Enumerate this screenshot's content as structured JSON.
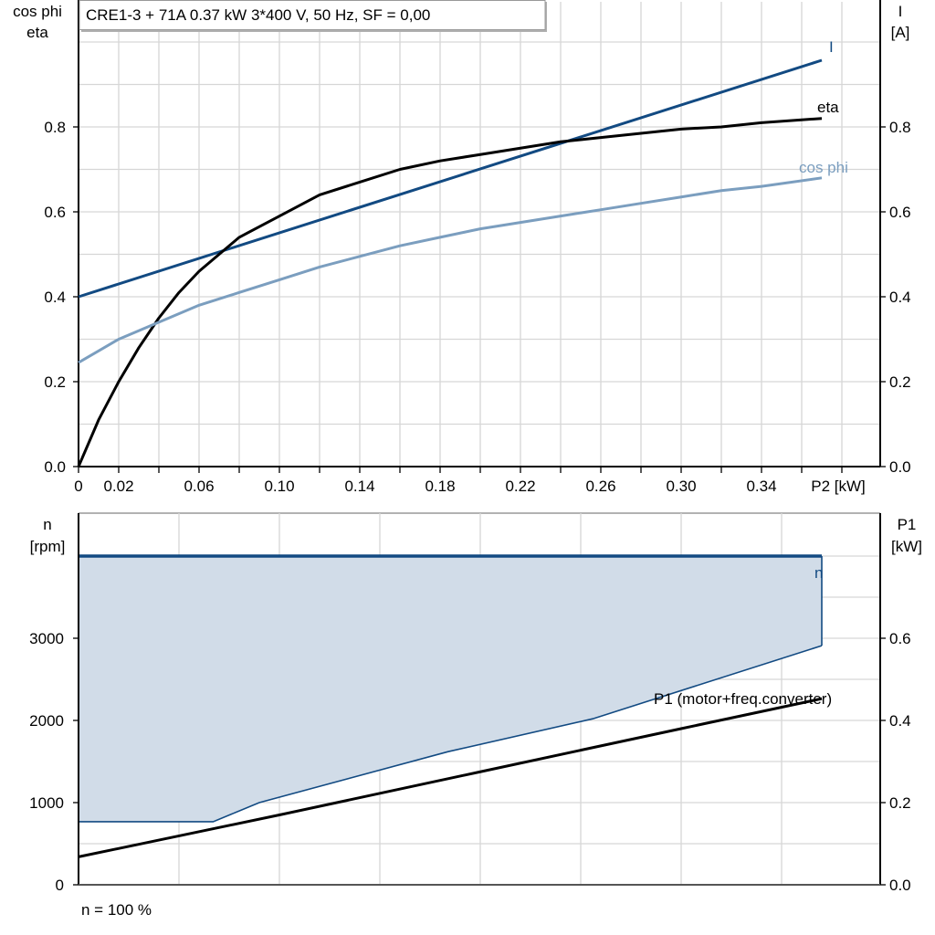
{
  "chart_data": [
    {
      "type": "line",
      "title": "CRE1-3 + 71A   0.37 kW   3*400 V, 50 Hz, SF = 0,00",
      "xlabel": "P2 [kW]",
      "ylabel_left": [
        "cos phi",
        "eta"
      ],
      "ylabel_right": [
        "I",
        "[A]"
      ],
      "xlim": [
        0,
        0.4
      ],
      "ylim": [
        0,
        1.1
      ],
      "grid": true,
      "x_tick_labels": [
        "0",
        "0.02",
        "0.06",
        "0.10",
        "0.14",
        "0.18",
        "0.22",
        "0.26",
        "0.30",
        "0.34"
      ],
      "y_tick_labels_left": [
        "0.0",
        "0.2",
        "0.4",
        "0.6",
        "0.8"
      ],
      "y_tick_labels_right": [
        "0.0",
        "0.2",
        "0.4",
        "0.6",
        "0.8"
      ],
      "series": [
        {
          "name": "I",
          "color": "#124a82",
          "x": [
            0,
            0.37
          ],
          "y": [
            0.4,
            0.957
          ]
        },
        {
          "name": "eta",
          "color": "#000000",
          "x": [
            0,
            0.01,
            0.02,
            0.03,
            0.04,
            0.05,
            0.06,
            0.07,
            0.08,
            0.1,
            0.12,
            0.14,
            0.16,
            0.18,
            0.2,
            0.22,
            0.24,
            0.26,
            0.28,
            0.3,
            0.32,
            0.34,
            0.37
          ],
          "y": [
            0,
            0.11,
            0.2,
            0.28,
            0.35,
            0.41,
            0.46,
            0.5,
            0.54,
            0.59,
            0.64,
            0.67,
            0.7,
            0.72,
            0.735,
            0.75,
            0.765,
            0.775,
            0.785,
            0.795,
            0.8,
            0.81,
            0.82
          ]
        },
        {
          "name": "cos phi",
          "color": "#7b9ebf",
          "x": [
            0,
            0.02,
            0.04,
            0.06,
            0.08,
            0.1,
            0.12,
            0.14,
            0.16,
            0.18,
            0.2,
            0.22,
            0.24,
            0.26,
            0.28,
            0.3,
            0.32,
            0.34,
            0.37
          ],
          "y": [
            0.245,
            0.3,
            0.34,
            0.38,
            0.41,
            0.44,
            0.47,
            0.495,
            0.52,
            0.54,
            0.56,
            0.575,
            0.59,
            0.605,
            0.62,
            0.635,
            0.65,
            0.66,
            0.68
          ]
        }
      ]
    },
    {
      "type": "area",
      "ylabel_left": [
        "n",
        "[rpm]"
      ],
      "ylabel_right": [
        "P1",
        "[kW]"
      ],
      "xlim": [
        0,
        0.4
      ],
      "ylim_left": [
        0,
        4500
      ],
      "ylim_right": [
        0,
        0.9
      ],
      "grid": true,
      "y_tick_labels_left": [
        "0",
        "1000",
        "2000",
        "3000"
      ],
      "y_tick_labels_right": [
        "0.0",
        "0.2",
        "0.4",
        "0.6"
      ],
      "footnote": "n = 100 %",
      "series": [
        {
          "name": "n",
          "color": "#124a82",
          "fill": "#d1dce8",
          "upper": {
            "x": [
              0,
              0.37
            ],
            "y": [
              4000,
              4000
            ]
          },
          "lower": {
            "x": [
              0,
              0.067,
              0.09,
              0.184,
              0.256,
              0.37
            ],
            "y": [
              767,
              767,
              1000,
              1620,
              2020,
              2910
            ]
          }
        },
        {
          "name": "P1 (motor+freq.converter)",
          "color": "#000000",
          "axis": "right",
          "x": [
            0,
            0.1,
            0.2,
            0.3,
            0.37
          ],
          "y": [
            0.068,
            0.17,
            0.275,
            0.38,
            0.453
          ]
        }
      ]
    }
  ]
}
